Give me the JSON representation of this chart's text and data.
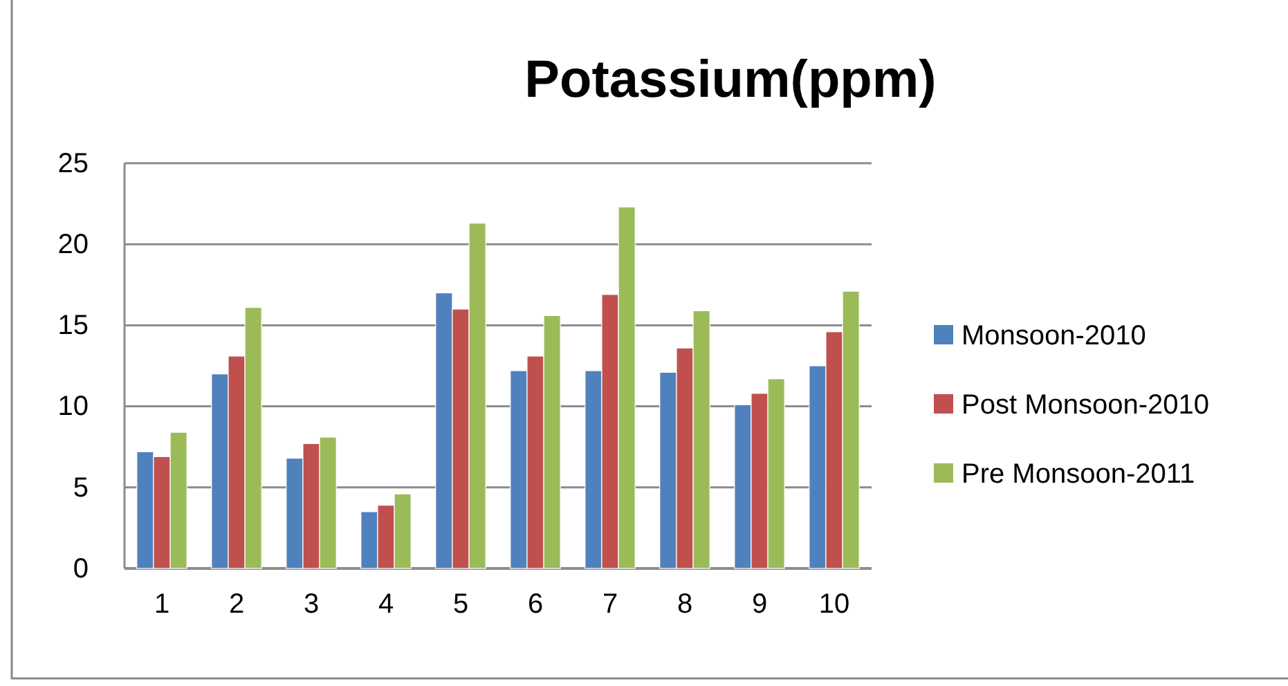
{
  "chart_data": {
    "type": "bar",
    "title": "Potassium(ppm)",
    "categories": [
      "1",
      "2",
      "3",
      "4",
      "5",
      "6",
      "7",
      "8",
      "9",
      "10"
    ],
    "series": [
      {
        "name": "Monsoon-2010",
        "color": "#4f81bd",
        "values": [
          7.2,
          12.0,
          6.8,
          3.5,
          17.0,
          12.2,
          12.2,
          12.1,
          10.1,
          12.5
        ]
      },
      {
        "name": "Post Monsoon-2010",
        "color": "#c0504d",
        "values": [
          6.9,
          13.1,
          7.7,
          3.9,
          16.0,
          13.1,
          16.9,
          13.6,
          10.8,
          14.6
        ]
      },
      {
        "name": "Pre Monsoon-2011",
        "color": "#9bbb59",
        "values": [
          8.4,
          16.1,
          8.1,
          4.6,
          21.3,
          15.6,
          22.3,
          15.9,
          11.7,
          17.1
        ]
      }
    ],
    "ylim": [
      0,
      25
    ],
    "yticks": [
      0,
      5,
      10,
      15,
      20,
      25
    ],
    "grid": "y",
    "legend": "right"
  }
}
